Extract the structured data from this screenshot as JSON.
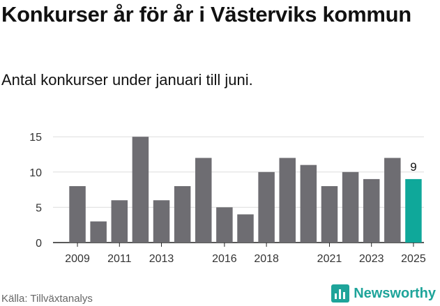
{
  "header": {
    "title": "Konkurser år för år i Västerviks kommun",
    "subtitle": "Antal konkurser under januari till juni."
  },
  "footer": {
    "source": "Källa: Tillväxtanalys",
    "brand": "Newsworthy"
  },
  "colors": {
    "bar": "#6e6d72",
    "highlight": "#0fa89a",
    "grid": "#dddddd",
    "brand": "#1ea49a"
  },
  "icons": {
    "brand": "chart-bars-icon"
  },
  "chart_data": {
    "type": "bar",
    "categories": [
      "2009",
      "2010",
      "2011",
      "2012",
      "2013",
      "2014",
      "2015",
      "2016",
      "2017",
      "2018",
      "2019",
      "2020",
      "2021",
      "2022",
      "2023",
      "2024",
      "2025"
    ],
    "values": [
      8,
      3,
      6,
      15,
      6,
      8,
      12,
      5,
      4,
      10,
      12,
      11,
      8,
      10,
      9,
      12,
      9
    ],
    "tick_labels_x": [
      "2009",
      "2011",
      "2013",
      "2016",
      "2018",
      "2021",
      "2023",
      "2025"
    ],
    "yticks": [
      0,
      5,
      10,
      15
    ],
    "ylim": [
      0,
      16.6
    ],
    "highlight_index": 16,
    "data_labels": [
      {
        "index": 16,
        "text": "9"
      }
    ],
    "grid": true,
    "legend": "none"
  }
}
